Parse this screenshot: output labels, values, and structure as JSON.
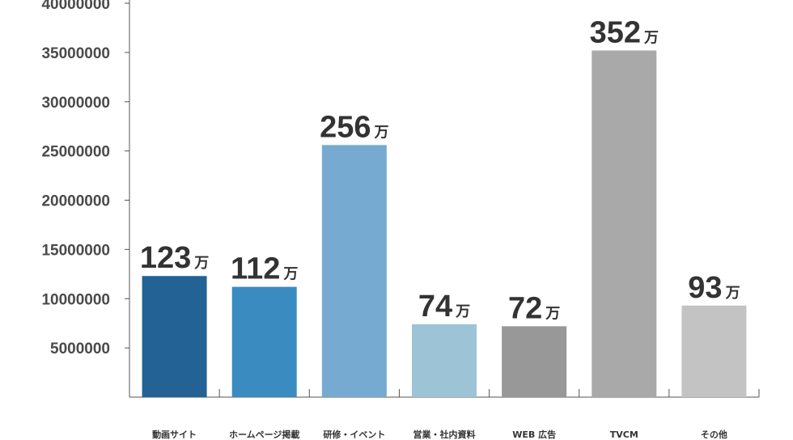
{
  "chart_data": {
    "type": "bar",
    "categories": [
      "動画サイト",
      "ホームページ掲載",
      "研修・イベント",
      "営業・社内資料",
      "WEB 広告",
      "TVCM",
      "その他"
    ],
    "values": [
      12300000,
      11200000,
      25600000,
      7400000,
      7200000,
      35200000,
      9300000
    ],
    "data_labels": [
      "123",
      "112",
      "256",
      "74",
      "72",
      "352",
      "93"
    ],
    "data_label_unit": "万",
    "bar_colors": [
      "#236294",
      "#3a8bc0",
      "#77aad1",
      "#9dc3d6",
      "#979897",
      "#a8a9a8",
      "#c2c3c2"
    ],
    "ylim": [
      0,
      40000000
    ],
    "yticks": [
      5000000,
      10000000,
      15000000,
      20000000,
      25000000,
      30000000,
      35000000,
      40000000
    ],
    "ytick_labels": [
      "5000000",
      "10000000",
      "15000000",
      "20000000",
      "25000000",
      "30000000",
      "35000000",
      "40000000"
    ],
    "grid": false,
    "title": "",
    "xlabel": "",
    "ylabel": ""
  }
}
